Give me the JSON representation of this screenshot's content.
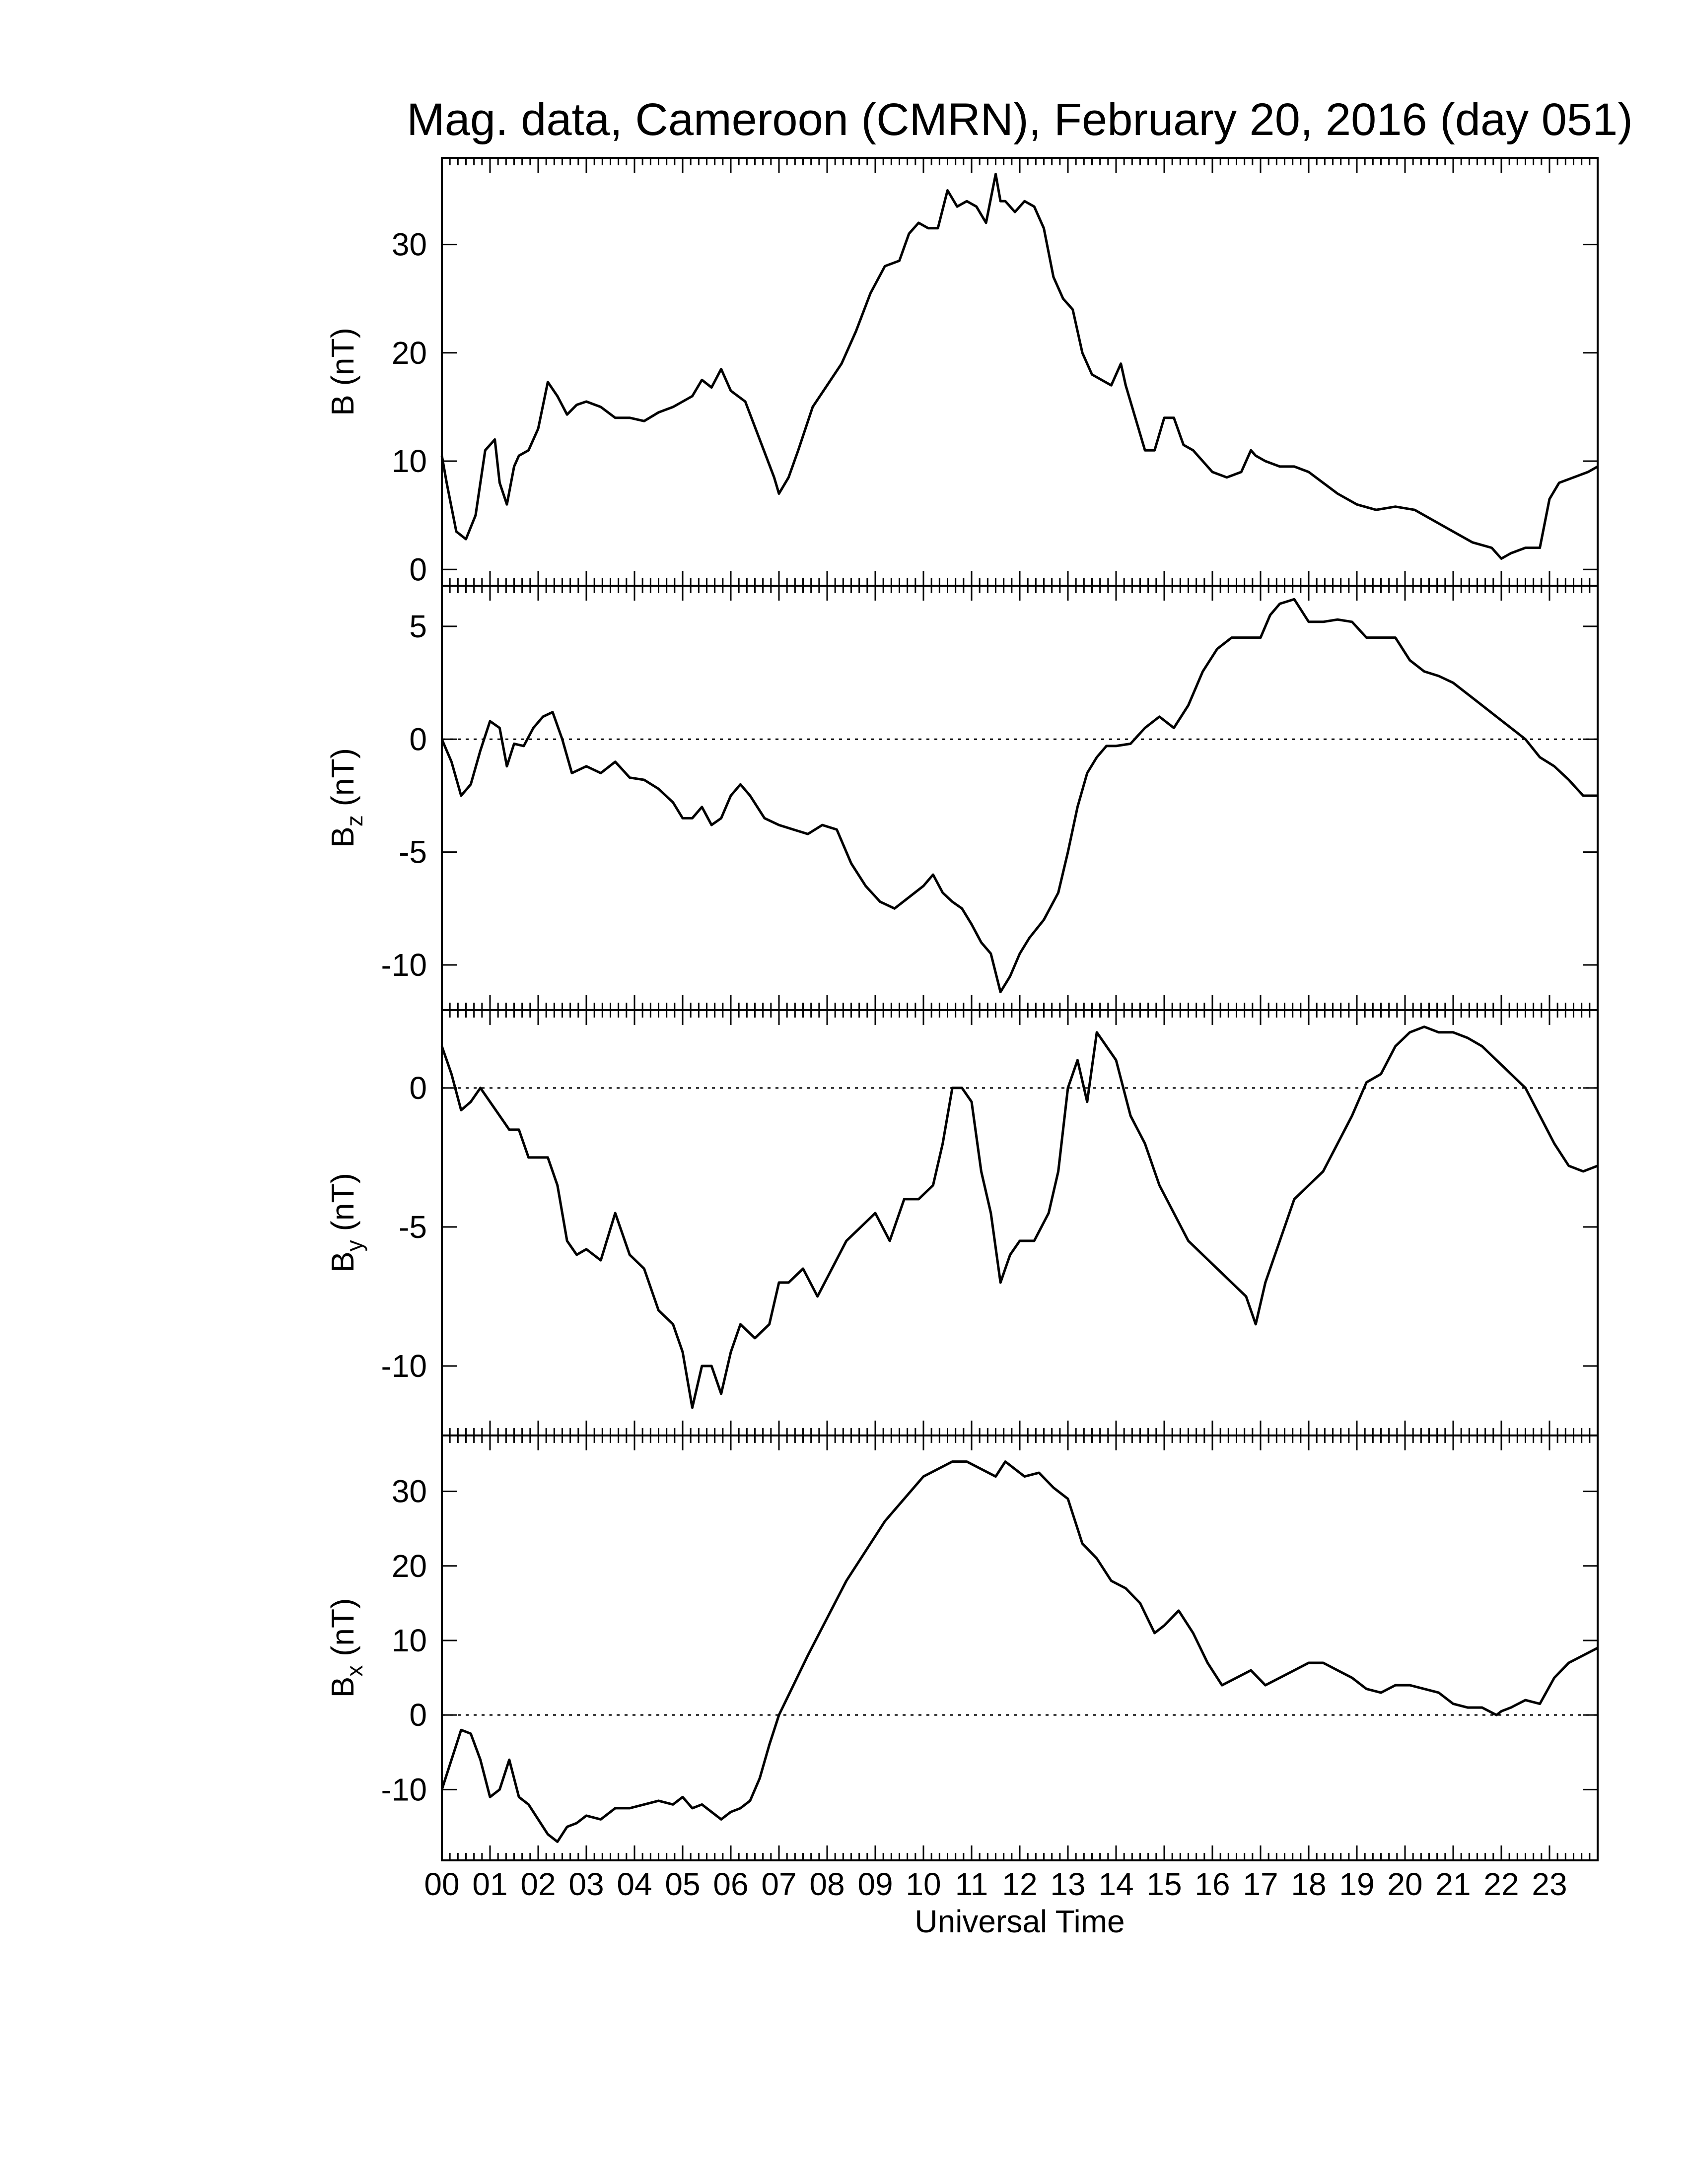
{
  "chart_data": {
    "title": "Mag. data, Cameroon (CMRN), February 20, 2016 (day 051)",
    "xlabel": "Universal Time",
    "x_ticks": [
      "00",
      "01",
      "02",
      "03",
      "04",
      "05",
      "06",
      "07",
      "08",
      "09",
      "10",
      "11",
      "12",
      "13",
      "14",
      "15",
      "16",
      "17",
      "18",
      "19",
      "20",
      "21",
      "22",
      "23"
    ],
    "xlim": [
      0,
      24
    ],
    "panels": [
      {
        "type": "line",
        "ylabel_main": "B",
        "ylabel_sub": "",
        "ylabel_unit": "(nT)",
        "ylim": [
          -1.5,
          38
        ],
        "yticks": [
          0,
          10,
          20,
          30
        ],
        "zero_line": false,
        "x": [
          0,
          0.1,
          0.3,
          0.5,
          0.7,
          0.9,
          1.1,
          1.2,
          1.35,
          1.5,
          1.6,
          1.8,
          2.0,
          2.2,
          2.4,
          2.6,
          2.8,
          3.0,
          3.3,
          3.6,
          3.9,
          4.2,
          4.5,
          4.8,
          5.0,
          5.2,
          5.4,
          5.6,
          5.8,
          6.0,
          6.3,
          6.6,
          6.9,
          7.0,
          7.2,
          7.4,
          7.7,
          8.0,
          8.3,
          8.6,
          8.9,
          9.2,
          9.5,
          9.7,
          9.9,
          10.1,
          10.3,
          10.5,
          10.7,
          10.9,
          11.1,
          11.3,
          11.5,
          11.6,
          11.7,
          11.9,
          12.1,
          12.3,
          12.5,
          12.7,
          12.9,
          13.1,
          13.3,
          13.5,
          13.7,
          13.9,
          14.1,
          14.2,
          14.4,
          14.6,
          14.8,
          15.0,
          15.2,
          15.4,
          15.6,
          15.8,
          16.0,
          16.3,
          16.6,
          16.8,
          16.9,
          17.1,
          17.4,
          17.7,
          18.0,
          18.3,
          18.6,
          19.0,
          19.4,
          19.8,
          20.2,
          20.6,
          21.0,
          21.4,
          21.8,
          22.0,
          22.2,
          22.5,
          22.8,
          23.0,
          23.2,
          23.5,
          23.8,
          24.0
        ],
        "y": [
          10.5,
          8,
          3.5,
          2.8,
          5,
          11,
          12,
          8,
          6,
          9.5,
          10.5,
          11,
          13,
          17.3,
          16,
          14.3,
          15.2,
          15.5,
          15,
          14,
          14,
          13.7,
          14.5,
          15,
          15.5,
          16,
          17.5,
          16.8,
          18.5,
          16.5,
          15.5,
          12,
          8.5,
          7,
          8.5,
          11,
          15,
          17,
          19,
          22,
          25.5,
          28,
          28.5,
          31,
          32,
          31.5,
          31.5,
          35,
          33.5,
          34,
          33.5,
          32,
          36.5,
          34,
          34,
          33,
          34,
          33.5,
          31.5,
          27,
          25,
          24,
          20,
          18,
          17.5,
          17,
          19,
          17,
          14,
          11,
          11,
          14,
          14,
          11.5,
          11,
          10,
          9,
          8.5,
          9,
          11,
          10.5,
          10,
          9.5,
          9.5,
          9,
          8,
          7,
          6,
          5.5,
          5.8,
          5.5,
          4.5,
          3.5,
          2.5,
          2,
          1,
          1.5,
          2,
          2,
          6.5,
          8,
          8.5,
          9,
          9.5
        ]
      },
      {
        "type": "line",
        "ylabel_main": "B",
        "ylabel_sub": "z",
        "ylabel_unit": "(nT)",
        "ylim": [
          -12,
          6.8
        ],
        "yticks": [
          -10,
          -5,
          0,
          5
        ],
        "zero_line": true,
        "x": [
          0,
          0.2,
          0.4,
          0.6,
          0.8,
          1.0,
          1.2,
          1.35,
          1.5,
          1.7,
          1.9,
          2.1,
          2.3,
          2.5,
          2.7,
          3.0,
          3.3,
          3.6,
          3.9,
          4.2,
          4.5,
          4.8,
          5.0,
          5.2,
          5.4,
          5.6,
          5.8,
          6.0,
          6.2,
          6.4,
          6.7,
          7.0,
          7.3,
          7.6,
          7.9,
          8.2,
          8.5,
          8.8,
          9.1,
          9.4,
          9.7,
          10.0,
          10.2,
          10.4,
          10.6,
          10.8,
          11.0,
          11.2,
          11.4,
          11.6,
          11.8,
          12.0,
          12.2,
          12.5,
          12.8,
          13.0,
          13.2,
          13.4,
          13.6,
          13.8,
          14.0,
          14.3,
          14.6,
          14.9,
          15.2,
          15.5,
          15.8,
          16.1,
          16.4,
          16.7,
          17.0,
          17.2,
          17.4,
          17.7,
          18.0,
          18.3,
          18.6,
          18.9,
          19.2,
          19.5,
          19.8,
          20.1,
          20.4,
          20.7,
          21.0,
          21.3,
          21.6,
          21.9,
          22.2,
          22.5,
          22.8,
          23.1,
          23.4,
          23.7,
          24.0
        ],
        "y": [
          0,
          -1,
          -2.5,
          -2,
          -0.5,
          0.8,
          0.5,
          -1.2,
          -0.2,
          -0.3,
          0.5,
          1,
          1.2,
          0,
          -1.5,
          -1.2,
          -1.5,
          -1,
          -1.7,
          -1.8,
          -2.2,
          -2.8,
          -3.5,
          -3.5,
          -3,
          -3.8,
          -3.5,
          -2.5,
          -2,
          -2.5,
          -3.5,
          -3.8,
          -4,
          -4.2,
          -3.8,
          -4,
          -5.5,
          -6.5,
          -7.2,
          -7.5,
          -7,
          -6.5,
          -6,
          -6.8,
          -7.2,
          -7.5,
          -8.2,
          -9,
          -9.5,
          -11.2,
          -10.5,
          -9.5,
          -8.8,
          -8,
          -6.8,
          -5,
          -3,
          -1.5,
          -0.8,
          -0.3,
          -0.3,
          -0.2,
          0.5,
          1,
          0.5,
          1.5,
          3,
          4,
          4.5,
          4.5,
          4.5,
          5.5,
          6,
          6.2,
          5.2,
          5.2,
          5.3,
          5.2,
          4.5,
          4.5,
          4.5,
          3.5,
          3,
          2.8,
          2.5,
          2,
          1.5,
          1,
          0.5,
          0,
          -0.8,
          -1.2,
          -1.8,
          -2.5,
          -2.5
        ]
      },
      {
        "type": "line",
        "ylabel_main": "B",
        "ylabel_sub": "y",
        "ylabel_unit": "(nT)",
        "ylim": [
          -12.5,
          2.8
        ],
        "yticks": [
          -10,
          -5,
          0
        ],
        "zero_line": true,
        "x": [
          0,
          0.2,
          0.4,
          0.6,
          0.8,
          1.0,
          1.2,
          1.4,
          1.6,
          1.8,
          2.0,
          2.2,
          2.4,
          2.6,
          2.8,
          3.0,
          3.3,
          3.6,
          3.9,
          4.2,
          4.5,
          4.8,
          5.0,
          5.2,
          5.4,
          5.6,
          5.8,
          6.0,
          6.2,
          6.5,
          6.8,
          7.0,
          7.2,
          7.5,
          7.8,
          8.1,
          8.4,
          8.7,
          9.0,
          9.3,
          9.6,
          9.9,
          10.2,
          10.4,
          10.6,
          10.8,
          11.0,
          11.2,
          11.4,
          11.6,
          11.8,
          12.0,
          12.3,
          12.6,
          12.8,
          13.0,
          13.2,
          13.4,
          13.6,
          13.8,
          14.0,
          14.3,
          14.6,
          14.9,
          15.2,
          15.5,
          15.8,
          16.1,
          16.4,
          16.7,
          16.9,
          17.1,
          17.4,
          17.7,
          18.0,
          18.3,
          18.6,
          18.9,
          19.2,
          19.5,
          19.8,
          20.1,
          20.4,
          20.7,
          21.0,
          21.3,
          21.6,
          21.9,
          22.2,
          22.5,
          22.8,
          23.1,
          23.4,
          23.7,
          24.0
        ],
        "y": [
          1.5,
          0.5,
          -0.8,
          -0.5,
          0,
          -0.5,
          -1,
          -1.5,
          -1.5,
          -2.5,
          -2.5,
          -2.5,
          -3.5,
          -5.5,
          -6,
          -5.8,
          -6.2,
          -4.5,
          -6,
          -6.5,
          -8,
          -8.5,
          -9.5,
          -11.5,
          -10,
          -10,
          -11,
          -9.5,
          -8.5,
          -9,
          -8.5,
          -7,
          -7,
          -6.5,
          -7.5,
          -6.5,
          -5.5,
          -5,
          -4.5,
          -5.5,
          -4,
          -4,
          -3.5,
          -2,
          0,
          0,
          -0.5,
          -3,
          -4.5,
          -7,
          -6,
          -5.5,
          -5.5,
          -4.5,
          -3,
          0,
          1,
          -0.5,
          2,
          1.5,
          1,
          -1,
          -2,
          -3.5,
          -4.5,
          -5.5,
          -6,
          -6.5,
          -7,
          -7.5,
          -8.5,
          -7,
          -5.5,
          -4,
          -3.5,
          -3,
          -2,
          -1,
          0.2,
          0.5,
          1.5,
          2,
          2.2,
          2,
          2,
          1.8,
          1.5,
          1,
          0.5,
          0,
          -1,
          -2,
          -2.8,
          -3,
          -2.8
        ]
      },
      {
        "type": "line",
        "ylabel_main": "B",
        "ylabel_sub": "x",
        "ylabel_unit": "(nT)",
        "ylim": [
          -19.5,
          37.5
        ],
        "yticks": [
          -10,
          0,
          10,
          20,
          30
        ],
        "zero_line": true,
        "x": [
          0,
          0.2,
          0.4,
          0.6,
          0.8,
          1.0,
          1.2,
          1.4,
          1.6,
          1.8,
          2.0,
          2.2,
          2.4,
          2.6,
          2.8,
          3.0,
          3.3,
          3.6,
          3.9,
          4.2,
          4.5,
          4.8,
          5.0,
          5.2,
          5.4,
          5.6,
          5.8,
          6.0,
          6.2,
          6.4,
          6.6,
          6.8,
          7.0,
          7.3,
          7.6,
          8.0,
          8.4,
          8.8,
          9.2,
          9.6,
          10.0,
          10.3,
          10.6,
          10.9,
          11.2,
          11.5,
          11.7,
          11.9,
          12.1,
          12.4,
          12.7,
          13.0,
          13.3,
          13.6,
          13.9,
          14.2,
          14.5,
          14.8,
          15.0,
          15.3,
          15.6,
          15.9,
          16.2,
          16.5,
          16.8,
          17.1,
          17.4,
          17.7,
          18.0,
          18.3,
          18.6,
          18.9,
          19.2,
          19.5,
          19.8,
          20.1,
          20.4,
          20.7,
          21.0,
          21.3,
          21.6,
          21.9,
          22.0,
          22.2,
          22.5,
          22.8,
          23.1,
          23.4,
          23.7,
          24.0
        ],
        "y": [
          -10,
          -6,
          -2,
          -2.5,
          -6,
          -11,
          -10,
          -6,
          -11,
          -12,
          -14,
          -16,
          -17,
          -15,
          -14.5,
          -13.5,
          -14,
          -12.5,
          -12.5,
          -12,
          -11.5,
          -12,
          -11,
          -12.5,
          -12,
          -13,
          -14,
          -13,
          -12.5,
          -11.5,
          -8.5,
          -4,
          0,
          4,
          8,
          13,
          18,
          22,
          26,
          29,
          32,
          33,
          34,
          34,
          33,
          32,
          34,
          33,
          32,
          32.5,
          30.5,
          29,
          23,
          21,
          18,
          17,
          15,
          11,
          12,
          14,
          11,
          7,
          4,
          5,
          6,
          4,
          5,
          6,
          7,
          7,
          6,
          5,
          3.5,
          3,
          4,
          4,
          3.5,
          3,
          1.5,
          1,
          1,
          0,
          0.5,
          1,
          2,
          1.5,
          5,
          7,
          8,
          9
        ]
      }
    ]
  }
}
